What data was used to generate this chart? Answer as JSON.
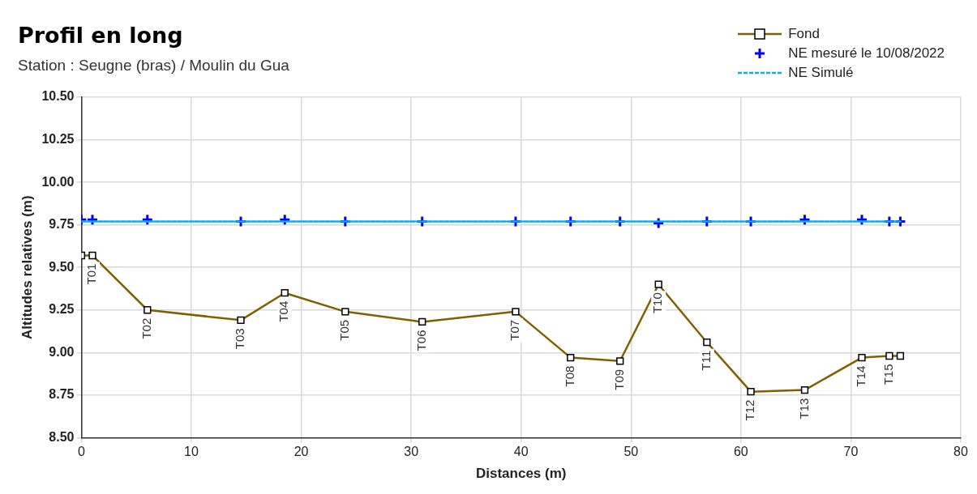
{
  "chart_data": {
    "type": "line",
    "title": "Profil en long",
    "subtitle": "Station : Seugne (bras) / Moulin du Gua",
    "xlabel": "Distances (m)",
    "ylabel": "Altitudes relatives (m)",
    "xlim": [
      0,
      80
    ],
    "xticks": [
      0,
      10,
      20,
      30,
      40,
      50,
      60,
      70,
      80
    ],
    "ylim": [
      8.5,
      10.5
    ],
    "yticks": [
      {
        "value": 8.5,
        "label": "8.50"
      },
      {
        "value": 8.75,
        "label": "8.75"
      },
      {
        "value": 9,
        "label": "9.00"
      },
      {
        "value": 9.25,
        "label": "9.25"
      },
      {
        "value": 9.5,
        "label": "9.50"
      },
      {
        "value": 9.75,
        "label": "9.75"
      },
      {
        "value": 10,
        "label": "10.00"
      },
      {
        "value": 10.25,
        "label": "10.25"
      },
      {
        "value": 10.5,
        "label": "10.50"
      }
    ],
    "grid": true,
    "legend": "top right",
    "series": [
      {
        "name": "Fond",
        "type": "line",
        "color": "#7f6000",
        "marker": "square",
        "line_style": "solid",
        "x": [
          0,
          1,
          6,
          14.5,
          18.5,
          24,
          31,
          39.5,
          44.5,
          49,
          52.5,
          56.9,
          60.9,
          65.8,
          71,
          73.5,
          74.5
        ],
        "values": [
          9.57,
          9.57,
          9.25,
          9.19,
          9.35,
          9.24,
          9.18,
          9.24,
          8.97,
          8.95,
          9.4,
          9.06,
          8.77,
          8.78,
          8.97,
          8.98,
          8.98
        ]
      },
      {
        "name": "NE mesuré le 10/08/2022",
        "type": "scatter",
        "color": "#0000ff",
        "marker": "cross",
        "x": [
          0,
          1,
          6,
          14.5,
          18.5,
          24,
          31,
          39.5,
          44.5,
          49,
          52.5,
          56.9,
          60.9,
          65.8,
          71,
          73.5,
          74.5
        ],
        "values": [
          9.78,
          9.78,
          9.78,
          9.77,
          9.78,
          9.77,
          9.77,
          9.77,
          9.77,
          9.77,
          9.76,
          9.77,
          9.77,
          9.78,
          9.78,
          9.77,
          9.77
        ]
      },
      {
        "name": "NE Simulé",
        "type": "line",
        "color": "#00b0f0",
        "marker": "none",
        "line_style": "dashed",
        "x": [
          0,
          74.5
        ],
        "values": [
          9.77,
          9.77
        ]
      }
    ],
    "annotations": [
      {
        "text": "T01",
        "x": 1,
        "y": 9.57
      },
      {
        "text": "T02",
        "x": 6,
        "y": 9.25
      },
      {
        "text": "T03",
        "x": 14.5,
        "y": 9.19
      },
      {
        "text": "T04",
        "x": 18.5,
        "y": 9.35
      },
      {
        "text": "T05",
        "x": 24,
        "y": 9.24
      },
      {
        "text": "T06",
        "x": 31,
        "y": 9.18
      },
      {
        "text": "T07",
        "x": 39.5,
        "y": 9.24
      },
      {
        "text": "T08",
        "x": 44.5,
        "y": 8.97
      },
      {
        "text": "T09",
        "x": 49,
        "y": 8.95
      },
      {
        "text": "T10",
        "x": 52.5,
        "y": 9.4
      },
      {
        "text": "T11",
        "x": 56.9,
        "y": 9.06
      },
      {
        "text": "T12",
        "x": 60.9,
        "y": 8.77
      },
      {
        "text": "T13",
        "x": 65.8,
        "y": 8.78
      },
      {
        "text": "T14",
        "x": 71,
        "y": 8.97
      },
      {
        "text": "T15",
        "x": 73.5,
        "y": 8.98
      }
    ]
  }
}
